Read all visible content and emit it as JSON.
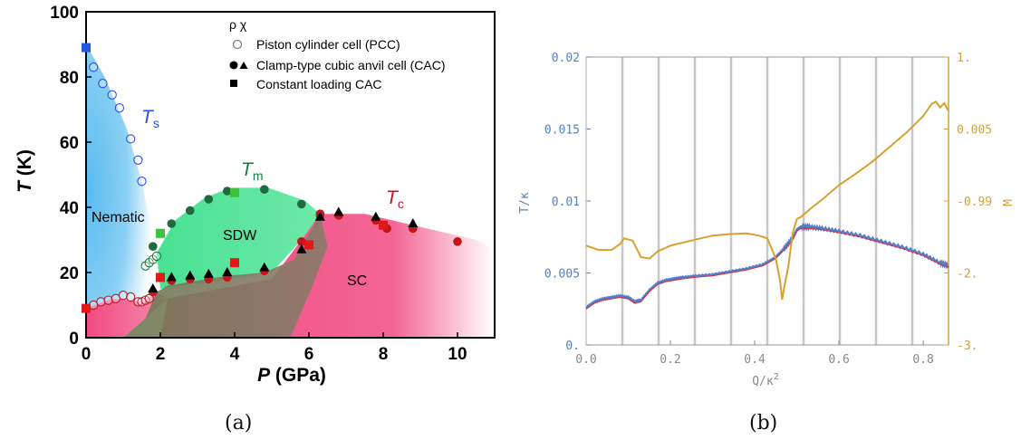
{
  "captions": {
    "a": "(a)",
    "b": "(b)"
  },
  "chart_data": [
    {
      "type": "scatter",
      "xlabel_main": "P",
      "xlabel_unit": " (GPa)",
      "ylabel_main": "T",
      "ylabel_unit": " (K)",
      "xlim": [
        0,
        11
      ],
      "ylim": [
        0,
        100
      ],
      "xticks": [
        0,
        2,
        4,
        6,
        8,
        10
      ],
      "yticks": [
        0,
        20,
        40,
        60,
        80,
        100
      ],
      "legend": {
        "header": "ρ  χ",
        "entries": [
          "Piston cylinder cell (PCC)",
          "Clamp-type cubic anvil cell (CAC)",
          "Constant loading CAC"
        ]
      },
      "region_labels": {
        "nematic": "Nematic",
        "sdw": "SDW",
        "sc": "SC"
      },
      "line_labels": {
        "ts_main": "T",
        "ts_sub": "s",
        "tm_main": "T",
        "tm_sub": "m",
        "tc_main": "T",
        "tc_sub": "c"
      },
      "colors": {
        "ts": "#2f4fe0",
        "tm": "#1f7a3e",
        "tc": "#c0161c",
        "nematic": "#5bbcef",
        "sdw": "#3ee08c",
        "sc": "#f0407a"
      },
      "series": [
        {
          "name": "Ts PCC (open circles)",
          "marker": "open-circle",
          "color": "#2f4fe0",
          "points": [
            [
              0.2,
              83
            ],
            [
              0.45,
              78
            ],
            [
              0.7,
              74.5
            ],
            [
              0.9,
              70.5
            ],
            [
              1.2,
              61
            ],
            [
              1.4,
              54.5
            ],
            [
              1.5,
              48
            ]
          ]
        },
        {
          "name": "Ts constant loading",
          "marker": "square",
          "color": "#1f5ae0",
          "points": [
            [
              0,
              89
            ]
          ]
        },
        {
          "name": "Tm PCC (open circles)",
          "marker": "open-circle",
          "color": "#1f7a3e",
          "points": [
            [
              1.6,
              22
            ],
            [
              1.7,
              23
            ],
            [
              1.8,
              24
            ],
            [
              1.9,
              25
            ]
          ]
        },
        {
          "name": "Tm CAC",
          "marker": "filled-circle",
          "color": "#1f6b3e",
          "points": [
            [
              1.8,
              28
            ],
            [
              2.3,
              35
            ],
            [
              2.8,
              39
            ],
            [
              3.3,
              42.5
            ],
            [
              3.8,
              45
            ],
            [
              4.8,
              45.5
            ],
            [
              5.8,
              41
            ],
            [
              6.3,
              37.5
            ]
          ]
        },
        {
          "name": "Tm constant loading",
          "marker": "square",
          "color": "#3ec23e",
          "points": [
            [
              2,
              32
            ],
            [
              4,
              44.5
            ]
          ]
        },
        {
          "name": "Tc PCC (open circles)",
          "marker": "open-circle",
          "color": "#c0161c",
          "points": [
            [
              0.2,
              10
            ],
            [
              0.4,
              11
            ],
            [
              0.6,
              11.5
            ],
            [
              0.8,
              12
            ],
            [
              1.0,
              13
            ],
            [
              1.2,
              12.5
            ],
            [
              1.4,
              11
            ],
            [
              1.5,
              11
            ],
            [
              1.6,
              11.5
            ],
            [
              1.7,
              12
            ]
          ]
        },
        {
          "name": "Tc CAC circles",
          "marker": "filled-circle",
          "color": "#c0161c",
          "points": [
            [
              1.8,
              14
            ],
            [
              2.3,
              17.5
            ],
            [
              2.8,
              18
            ],
            [
              3.3,
              18
            ],
            [
              3.8,
              18.5
            ],
            [
              4.8,
              20.5
            ],
            [
              5.8,
              29.5
            ],
            [
              6.3,
              38
            ],
            [
              6.8,
              37.5
            ],
            [
              7.8,
              36
            ],
            [
              8.1,
              33.5
            ],
            [
              8.8,
              33.5
            ],
            [
              10.0,
              29.5
            ]
          ]
        },
        {
          "name": "Tc CAC triangles",
          "marker": "triangle",
          "color": "#000000",
          "points": [
            [
              1.8,
              15
            ],
            [
              2.3,
              18.5
            ],
            [
              2.8,
              19
            ],
            [
              3.3,
              19.5
            ],
            [
              3.8,
              20
            ],
            [
              4.8,
              21.5
            ],
            [
              5.8,
              27
            ],
            [
              6.3,
              37
            ],
            [
              6.8,
              38.5
            ],
            [
              7.8,
              37
            ],
            [
              8.8,
              35
            ]
          ]
        },
        {
          "name": "Tc constant loading",
          "marker": "square",
          "color": "#e01818",
          "points": [
            [
              0,
              9
            ],
            [
              2,
              18.5
            ],
            [
              4,
              23
            ],
            [
              6,
              28.5
            ],
            [
              8,
              34.5
            ]
          ]
        }
      ]
    },
    {
      "type": "line",
      "xlabel": "Q/κ",
      "xlabel_sup": "2",
      "ylabel_left": "T/κ",
      "ylabel_right": "M",
      "xlim": [
        0,
        0.86
      ],
      "ylim_left": [
        0,
        0.02
      ],
      "ylim_right": [
        -3,
        1
      ],
      "xticks": [
        0.0,
        0.2,
        0.4,
        0.6,
        0.8
      ],
      "xtick_labels": [
        "0.0",
        "0.2",
        "0.4",
        "0.6",
        "0.8"
      ],
      "yticks_left": [
        0,
        0.005,
        0.01,
        0.015,
        0.02
      ],
      "ytick_labels_left": [
        "0.",
        "0.005",
        "0.01",
        "0.015",
        "0.02"
      ],
      "yticks_right_pos": [
        -3,
        -2,
        -1,
        0,
        1
      ],
      "ytick_labels_right": [
        "-3.",
        "-2.",
        "-0.99",
        "0.005",
        "1."
      ],
      "vertical_gridlines": [
        0.086,
        0.172,
        0.258,
        0.344,
        0.43,
        0.516,
        0.602,
        0.688,
        0.774
      ],
      "colors": {
        "left_axis": "#5a7fc0",
        "right_axis": "#d9a030",
        "grid": "#c8c8c8",
        "t_line": "#4f7fcc",
        "fit_line": "#d2344a",
        "m_line": "#d9a030"
      },
      "series": [
        {
          "name": "T/κ",
          "axis": "left",
          "color": "#4f7fcc",
          "x": [
            0.0,
            0.02,
            0.04,
            0.06,
            0.08,
            0.1,
            0.115,
            0.13,
            0.15,
            0.17,
            0.19,
            0.21,
            0.23,
            0.26,
            0.3,
            0.34,
            0.38,
            0.42,
            0.45,
            0.47,
            0.49,
            0.5,
            0.51,
            0.53,
            0.56,
            0.6,
            0.65,
            0.7,
            0.75,
            0.8,
            0.84,
            0.86
          ],
          "y": [
            0.0026,
            0.003,
            0.0032,
            0.0033,
            0.0034,
            0.0033,
            0.003,
            0.0031,
            0.0038,
            0.0043,
            0.0045,
            0.0046,
            0.0047,
            0.0048,
            0.0049,
            0.0051,
            0.0053,
            0.0056,
            0.0061,
            0.0067,
            0.0074,
            0.008,
            0.0082,
            0.0082,
            0.0081,
            0.0079,
            0.0076,
            0.0072,
            0.0068,
            0.0063,
            0.0057,
            0.0055
          ]
        },
        {
          "name": "M",
          "axis": "right",
          "color": "#d9a030",
          "x": [
            0.0,
            0.03,
            0.06,
            0.08,
            0.09,
            0.11,
            0.13,
            0.15,
            0.17,
            0.2,
            0.25,
            0.3,
            0.34,
            0.38,
            0.41,
            0.43,
            0.45,
            0.46,
            0.465,
            0.47,
            0.48,
            0.49,
            0.5,
            0.51,
            0.53,
            0.56,
            0.6,
            0.64,
            0.68,
            0.72,
            0.76,
            0.8,
            0.82,
            0.83,
            0.84,
            0.85,
            0.86
          ],
          "y": [
            -1.62,
            -1.68,
            -1.68,
            -1.6,
            -1.52,
            -1.55,
            -1.78,
            -1.8,
            -1.7,
            -1.62,
            -1.55,
            -1.48,
            -1.46,
            -1.45,
            -1.48,
            -1.52,
            -1.8,
            -2.1,
            -2.37,
            -2.2,
            -1.9,
            -1.45,
            -1.25,
            -1.22,
            -1.12,
            -0.98,
            -0.78,
            -0.62,
            -0.45,
            -0.25,
            -0.05,
            0.18,
            0.35,
            0.38,
            0.3,
            0.36,
            0.25
          ]
        }
      ]
    }
  ]
}
